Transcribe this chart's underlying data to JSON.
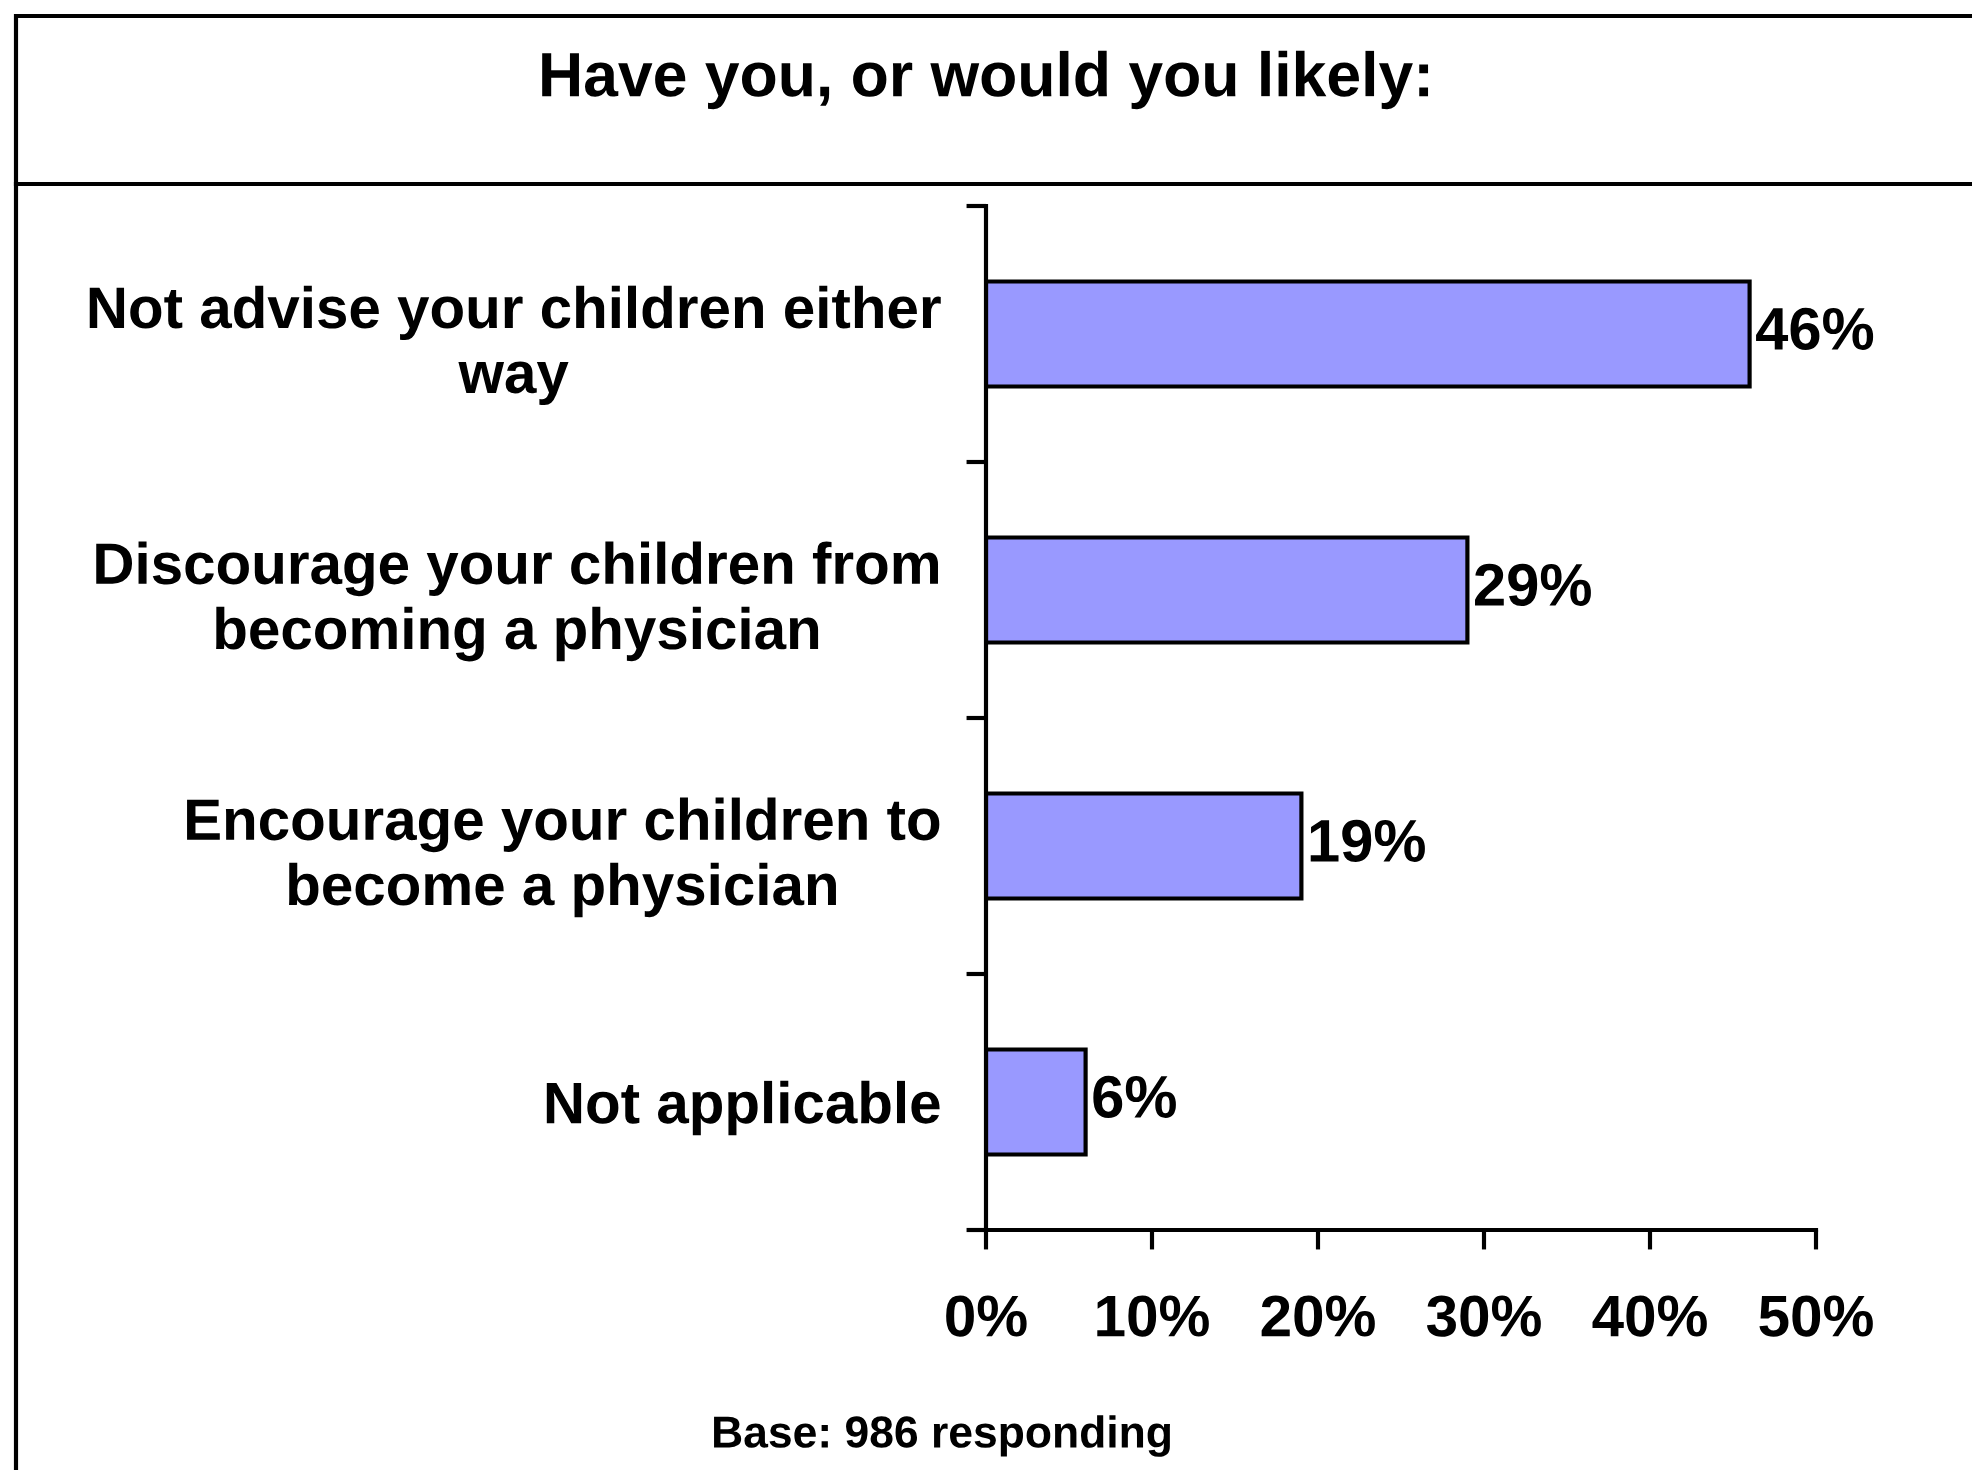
{
  "chart_data": {
    "type": "bar",
    "orientation": "horizontal",
    "title": "Have you, or would you likely:",
    "categories": [
      "Not advise your children either way",
      "Discourage your children from becoming a physician",
      "Encourage your children to become a physician",
      "Not applicable"
    ],
    "values": [
      46,
      29,
      19,
      6
    ],
    "value_labels": [
      "46%",
      "29%",
      "19%",
      "6%"
    ],
    "color": "#9999ff",
    "xlim": [
      0,
      50
    ],
    "xticks": [
      {
        "value": 0,
        "label": "0%"
      },
      {
        "value": 10,
        "label": "10%"
      },
      {
        "value": 20,
        "label": "20%"
      },
      {
        "value": 30,
        "label": "30%"
      },
      {
        "value": 40,
        "label": "40%"
      },
      {
        "value": 50,
        "label": "50%"
      }
    ],
    "grid": false,
    "legend": false,
    "annotations": [
      "Base: 986 responding"
    ]
  }
}
